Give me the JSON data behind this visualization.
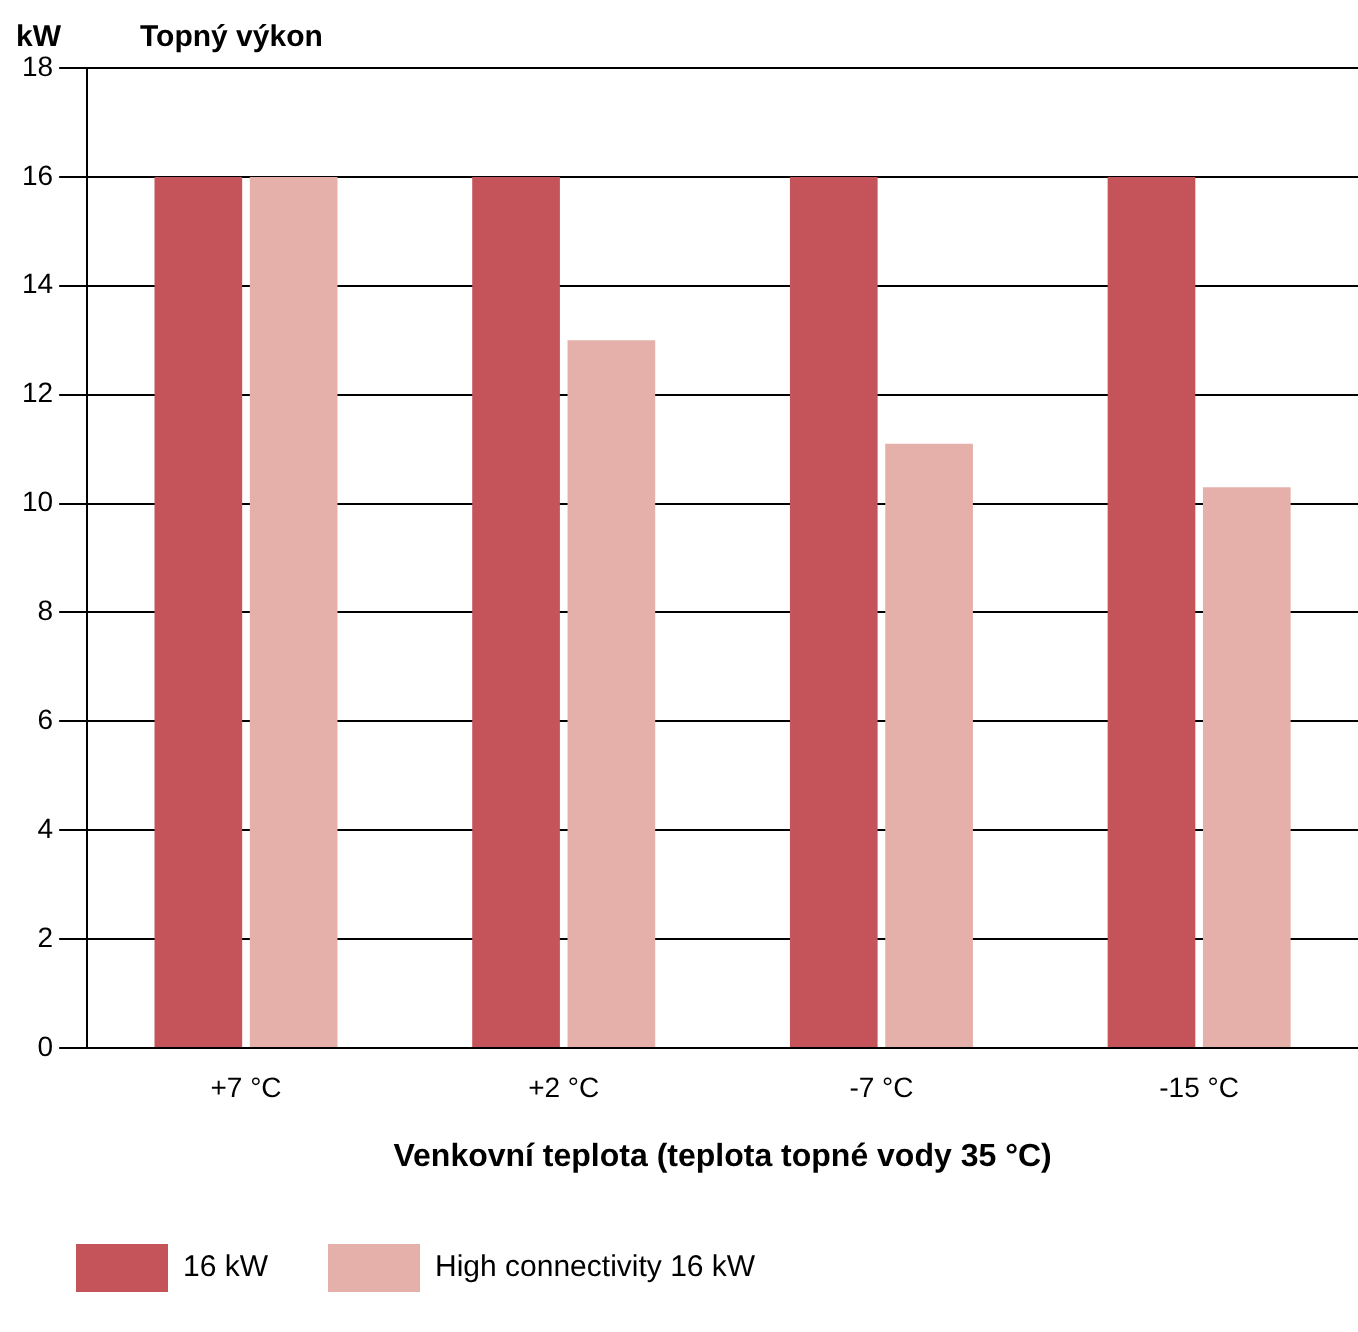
{
  "chart_data": {
    "type": "bar",
    "title": "Topný výkon",
    "ylabel": "kW",
    "xlabel": "Venkovní teplota (teplota topné vody 35 °C)",
    "categories": [
      "+7 °C",
      "+2 °C",
      "-7 °C",
      "-15 °C"
    ],
    "series": [
      {
        "name": "16 kW",
        "color": "#c4545a",
        "values": [
          16,
          16,
          16,
          16
        ]
      },
      {
        "name": "High connectivity 16 kW",
        "color": "#e5b0aa",
        "values": [
          16,
          13.0,
          11.1,
          10.3
        ]
      }
    ],
    "ylim": [
      0,
      18
    ],
    "yticks": [
      0,
      2,
      4,
      6,
      8,
      10,
      12,
      14,
      16,
      18
    ],
    "grid": "y",
    "legend": "bottom left"
  }
}
